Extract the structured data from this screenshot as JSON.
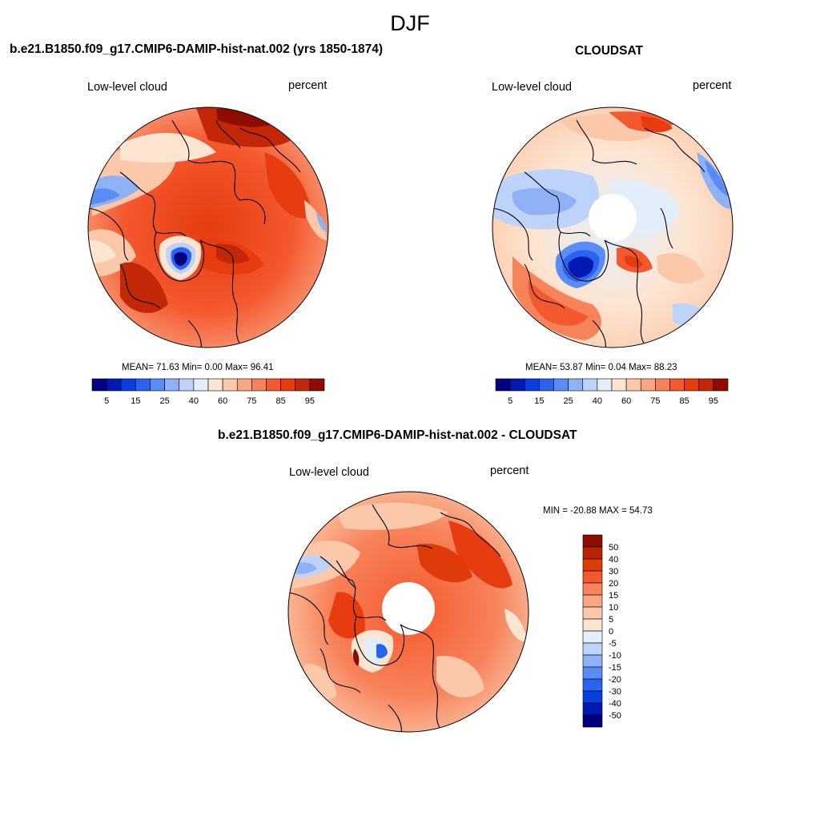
{
  "title": "DJF",
  "panels": [
    {
      "title": "b.e21.B1850.f09_g17.CMIP6-DAMIP-hist-nat.002 (yrs 1850-1874)",
      "left_label": "Low-level cloud",
      "right_label": "percent",
      "stats": "MEAN=  71.63  Min=   0.00  Max=  96.41"
    },
    {
      "title": "CLOUDSAT",
      "left_label": "Low-level cloud",
      "right_label": "percent",
      "stats": "MEAN=  53.87  Min=   0.04  Max=  88.23"
    },
    {
      "title": "b.e21.B1850.f09_g17.CMIP6-DAMIP-hist-nat.002 - CLOUDSAT",
      "left_label": "Low-level cloud",
      "right_label": "percent",
      "stats": "MIN = -20.88 MAX =  54.73"
    }
  ],
  "colorbar_abs": {
    "colors": [
      "#00007f",
      "#0019b3",
      "#0a3de0",
      "#2a63f0",
      "#5a8cf5",
      "#8fb2f7",
      "#bdd3f9",
      "#e3eefb",
      "#fde5d2",
      "#fbc9aa",
      "#f9a682",
      "#f7835b",
      "#f4582f",
      "#e63c10",
      "#c22808",
      "#8c0d00"
    ],
    "tick_labels": [
      "5",
      "15",
      "25",
      "40",
      "60",
      "75",
      "85",
      "95"
    ]
  },
  "colorbar_diff": {
    "colors": [
      "#8c0d00",
      "#b82400",
      "#df3a0a",
      "#f4582f",
      "#f7835b",
      "#f9a682",
      "#fbc9aa",
      "#fde5d2",
      "#e3eefb",
      "#bdd3f9",
      "#8fb2f7",
      "#5a8cf5",
      "#2a63f0",
      "#0a3de0",
      "#0019b3",
      "#00007f"
    ],
    "tick_labels": [
      "50",
      "40",
      "30",
      "20",
      "15",
      "10",
      "5",
      "0",
      "-5",
      "-10",
      "-15",
      "-20",
      "-30",
      "-40",
      "-50"
    ]
  }
}
